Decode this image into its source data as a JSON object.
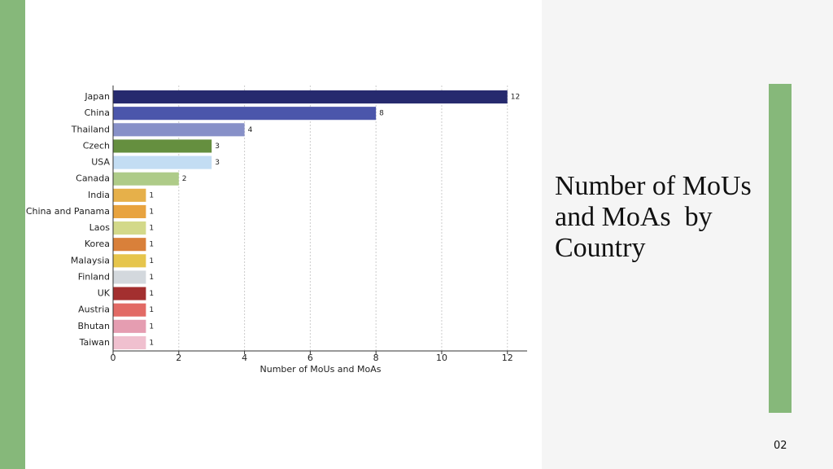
{
  "slide": {
    "title": "Number of MoUs and MoAs  by Country",
    "page_number": "02"
  },
  "chart_data": {
    "type": "bar",
    "orientation": "horizontal",
    "categories": [
      "Japan",
      "China",
      "Thailand",
      "Czech",
      "USA",
      "Canada",
      "India",
      "China and Panama",
      "Laos",
      "Korea",
      "Malaysia",
      "Finland",
      "UK",
      "Austria",
      "Bhutan",
      "Taiwan"
    ],
    "values": [
      12,
      8,
      4,
      3,
      3,
      2,
      1,
      1,
      1,
      1,
      1,
      1,
      1,
      1,
      1,
      1
    ],
    "colors": [
      "#262a6e",
      "#4b56ab",
      "#8790c8",
      "#658f3f",
      "#c3ddf3",
      "#aecb88",
      "#e6b04a",
      "#e8a33f",
      "#d3d98a",
      "#d9803a",
      "#e6c54c",
      "#d3d8dd",
      "#a32f2f",
      "#e26a65",
      "#e59db1",
      "#f0c0cf"
    ],
    "xlabel": "Number of MoUs and MoAs",
    "xlim": [
      0,
      12.6
    ],
    "xticks": [
      0,
      2,
      4,
      6,
      8,
      10,
      12
    ],
    "grid": true
  }
}
